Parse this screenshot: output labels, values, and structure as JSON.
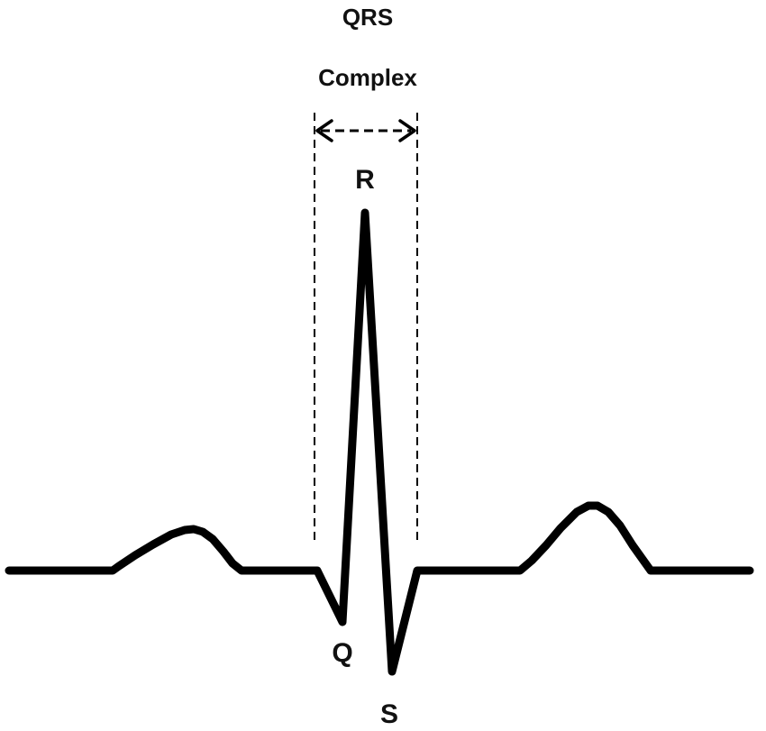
{
  "labels": {
    "title_line1": "QRS",
    "title_line2": "Complex",
    "r_wave": "R",
    "q_wave": "Q",
    "s_wave": "S"
  },
  "colors": {
    "background": "#ffffff",
    "trace": "#000000"
  }
}
